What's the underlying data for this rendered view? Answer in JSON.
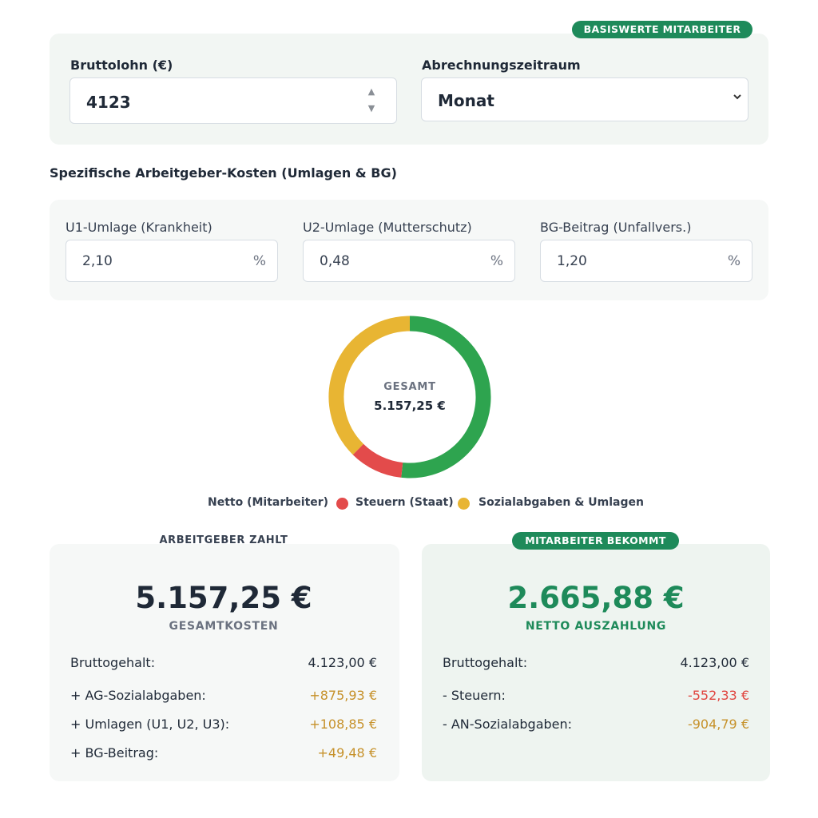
{
  "colors": {
    "accent_green": "#1e8a5a",
    "netto_green": "#2ea44f",
    "steuern_red": "#e34b4b",
    "sozial_yellow": "#e8b533",
    "positive_amber": "#c6912a",
    "negative_red": "#e0453f"
  },
  "base": {
    "badge": "BASISWERTE MITARBEITER",
    "gross_label": "Bruttolohn (€)",
    "gross_value": "4123",
    "period_label": "Abrechnungszeitraum",
    "period_value": "Monat"
  },
  "specific": {
    "title": "Spezifische Arbeitgeber-Kosten (Umlagen & BG)",
    "fields": [
      {
        "label": "U1-Umlage (Krankheit)",
        "value": "2,10",
        "unit": "%"
      },
      {
        "label": "U2-Umlage (Mutterschutz)",
        "value": "0,48",
        "unit": "%"
      },
      {
        "label": "BG-Beitrag (Unfallvers.)",
        "value": "1,20",
        "unit": "%"
      }
    ]
  },
  "chart_data": {
    "type": "pie",
    "center_label": "GESAMT",
    "center_value": "5.157,25 €",
    "categories": [
      "Netto (Mitarbeiter)",
      "Steuern (Staat)",
      "Sozialabgaben & Umlagen"
    ],
    "values": [
      2665.88,
      552.33,
      1939.04
    ],
    "colors": [
      "#2ea44f",
      "#e34b4b",
      "#e8b533"
    ]
  },
  "legend": {
    "items": [
      "Netto (Mitarbeiter)",
      "Steuern (Staat)",
      "Sozialabgaben & Umlagen"
    ]
  },
  "employer": {
    "header": "ARBEITGEBER ZAHLT",
    "total": "5.157,25 €",
    "total_label": "GESAMTKOSTEN",
    "rows": [
      {
        "label": "Bruttogehalt:",
        "value": "4.123,00 €"
      },
      {
        "label": "+ AG-Sozialabgaben:",
        "value": "+875,93 €"
      },
      {
        "label": "+ Umlagen (U1, U2, U3):",
        "value": "+108,85 €"
      },
      {
        "label": "+ BG-Beitrag:",
        "value": "+49,48 €"
      }
    ]
  },
  "employee": {
    "header": "MITARBEITER BEKOMMT",
    "total": "2.665,88 €",
    "total_label": "NETTO AUSZAHLUNG",
    "rows": [
      {
        "label": "Bruttogehalt:",
        "value": "4.123,00 €"
      },
      {
        "label": "- Steuern:",
        "value": "-552,33 €"
      },
      {
        "label": "- AN-Sozialabgaben:",
        "value": "-904,79 €"
      }
    ]
  }
}
